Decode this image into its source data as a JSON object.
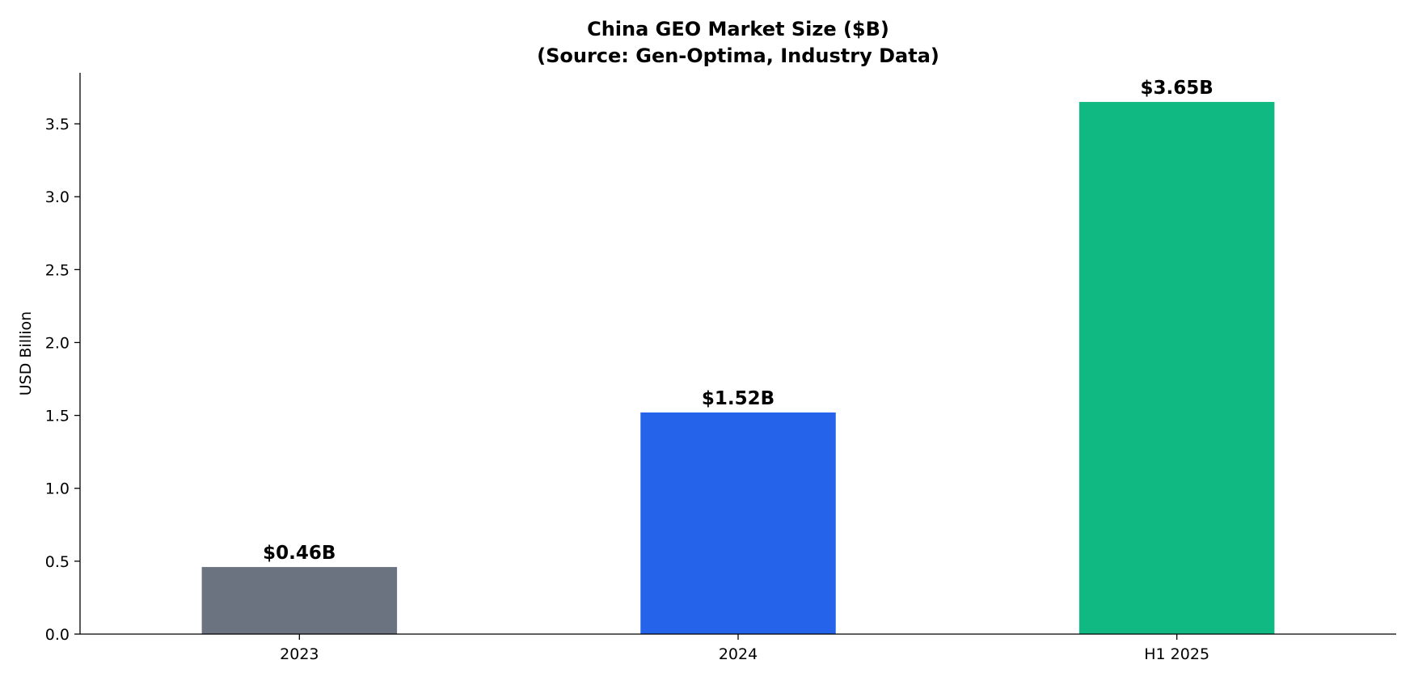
{
  "chart_data": {
    "type": "bar",
    "title": "China GEO Market Size ($B)",
    "subtitle": "(Source: Gen-Optima, Industry Data)",
    "xlabel": "",
    "ylabel": "USD Billion",
    "categories": [
      "2023",
      "2024",
      "H1 2025"
    ],
    "values": [
      0.46,
      1.52,
      3.65
    ],
    "data_labels": [
      "$0.46B",
      "$1.52B",
      "$3.65B"
    ],
    "colors": [
      "#6b7280",
      "#2563eb",
      "#10b981"
    ],
    "ylim": [
      0,
      3.85
    ],
    "yticks": [
      0.0,
      0.5,
      1.0,
      1.5,
      2.0,
      2.5,
      3.0,
      3.5
    ],
    "ytick_labels": [
      "0.0",
      "0.5",
      "1.0",
      "1.5",
      "2.0",
      "2.5",
      "3.0",
      "3.5"
    ],
    "grid": false,
    "legend": "none"
  }
}
